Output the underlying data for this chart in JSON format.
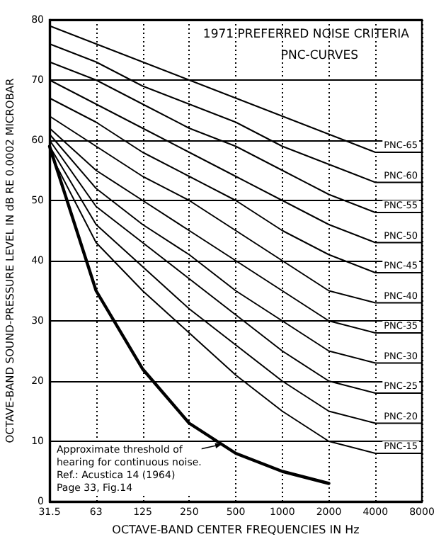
{
  "chart_data": {
    "type": "line",
    "title": "1971 PREFERRED NOISE CRITERIA",
    "subtitle": "PNC-CURVES",
    "xlabel": "OCTAVE-BAND CENTER FREQUENCIES IN Hz",
    "ylabel": "OCTAVE-BAND SOUND-PRESSURE LEVEL IN dB RE 0.0002 MICROBAR",
    "categories": [
      "31.5",
      "63",
      "125",
      "250",
      "500",
      "1000",
      "2000",
      "4000",
      "8000"
    ],
    "ylim": [
      0,
      80
    ],
    "yticks": [
      0,
      10,
      20,
      30,
      40,
      50,
      60,
      70,
      80
    ],
    "grid": true,
    "legend": false,
    "marker": "none",
    "line_style": "solid",
    "annotations": [
      "Approximate threshold of\nhearing for continuous noise.\nRef.: Acustica 14 (1964)\nPage 33, Fig.14"
    ],
    "series": [
      {
        "name": "PNC-65",
        "color": "#000000",
        "values": [
          79,
          76,
          73,
          70,
          67,
          64,
          61,
          58,
          58
        ]
      },
      {
        "name": "PNC-60",
        "color": "#000000",
        "values": [
          76,
          73,
          69,
          66,
          63,
          59,
          56,
          53,
          53
        ]
      },
      {
        "name": "PNC-55",
        "color": "#000000",
        "values": [
          73,
          70,
          66,
          62,
          59,
          55,
          51,
          48,
          48
        ]
      },
      {
        "name": "PNC-50",
        "color": "#000000",
        "values": [
          70,
          66,
          62,
          58,
          54,
          50,
          46,
          43,
          43
        ]
      },
      {
        "name": "PNC-45",
        "color": "#000000",
        "values": [
          67,
          63,
          58,
          54,
          50,
          45,
          41,
          38,
          38
        ]
      },
      {
        "name": "PNC-40",
        "color": "#000000",
        "values": [
          64,
          59,
          54,
          50,
          45,
          40,
          35,
          33,
          33
        ]
      },
      {
        "name": "PNC-35",
        "color": "#000000",
        "values": [
          62,
          55,
          50,
          45,
          40,
          35,
          30,
          28,
          28
        ]
      },
      {
        "name": "PNC-30",
        "color": "#000000",
        "values": [
          61,
          52,
          46,
          41,
          35,
          30,
          25,
          23,
          23
        ]
      },
      {
        "name": "PNC-25",
        "color": "#000000",
        "values": [
          60,
          49,
          43,
          37,
          31,
          25,
          20,
          18,
          18
        ]
      },
      {
        "name": "PNC-20",
        "color": "#000000",
        "values": [
          59,
          46,
          39,
          32,
          26,
          20,
          15,
          13,
          13
        ]
      },
      {
        "name": "PNC-15",
        "color": "#000000",
        "values": [
          58,
          43,
          35,
          28,
          21,
          15,
          10,
          8,
          8
        ]
      },
      {
        "color": "#000000",
        "values": [
          59,
          35,
          22,
          13,
          8,
          5,
          3,
          null,
          null
        ]
      }
    ]
  }
}
